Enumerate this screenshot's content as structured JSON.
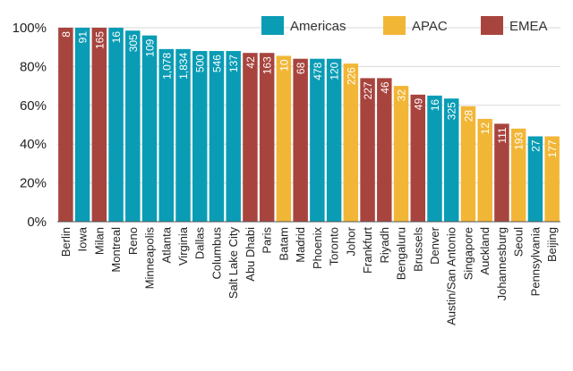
{
  "chart_data": {
    "type": "bar",
    "title": "",
    "xlabel": "",
    "ylabel": "",
    "ylim": [
      0,
      100
    ],
    "yticks": [
      0,
      20,
      40,
      60,
      80,
      100
    ],
    "ytick_labels": [
      "0%",
      "20%",
      "40%",
      "60%",
      "80%",
      "100%"
    ],
    "legend_position": "top-right",
    "series": [
      {
        "name": "Americas",
        "color": "#0a9cb5"
      },
      {
        "name": "APAC",
        "color": "#f2b636"
      },
      {
        "name": "EMEA",
        "color": "#a8443e"
      }
    ],
    "categories": [
      "Berlin",
      "Iowa",
      "Milan",
      "Montreal",
      "Reno",
      "Minneapolis",
      "Atlanta",
      "Virginia",
      "Dallas",
      "Columbus",
      "Salt Lake City",
      "Abu Dhabi",
      "Paris",
      "Batam",
      "Madrid",
      "Phoenix",
      "Toronto",
      "Johor",
      "Frankfurt",
      "Riyadh",
      "Bengaluru",
      "Brussels",
      "Denver",
      "Austin/San Antonio",
      "Singapore",
      "Auckland",
      "Johannesburg",
      "Seoul",
      "Pennsylvania",
      "Beijing"
    ],
    "regions": [
      "EMEA",
      "Americas",
      "EMEA",
      "Americas",
      "Americas",
      "Americas",
      "Americas",
      "Americas",
      "Americas",
      "Americas",
      "Americas",
      "EMEA",
      "EMEA",
      "APAC",
      "EMEA",
      "Americas",
      "Americas",
      "APAC",
      "EMEA",
      "EMEA",
      "APAC",
      "EMEA",
      "Americas",
      "Americas",
      "APAC",
      "APAC",
      "EMEA",
      "APAC",
      "Americas",
      "APAC"
    ],
    "values": [
      100,
      100,
      100,
      100,
      98.5,
      96,
      89,
      89,
      88,
      88,
      88,
      87,
      87,
      85.5,
      84,
      84,
      84,
      81.5,
      74,
      74,
      70,
      65.5,
      65,
      63.5,
      59.5,
      53,
      50.5,
      48,
      44,
      44
    ],
    "data_labels": [
      "8",
      "91",
      "165",
      "16",
      "305",
      "109",
      "1,078",
      "1,834",
      "500",
      "546",
      "137",
      "42",
      "163",
      "10",
      "68",
      "478",
      "120",
      "226",
      "227",
      "46",
      "32",
      "49",
      "16",
      "325",
      "28",
      "12",
      "111",
      "193",
      "27",
      "177"
    ]
  }
}
